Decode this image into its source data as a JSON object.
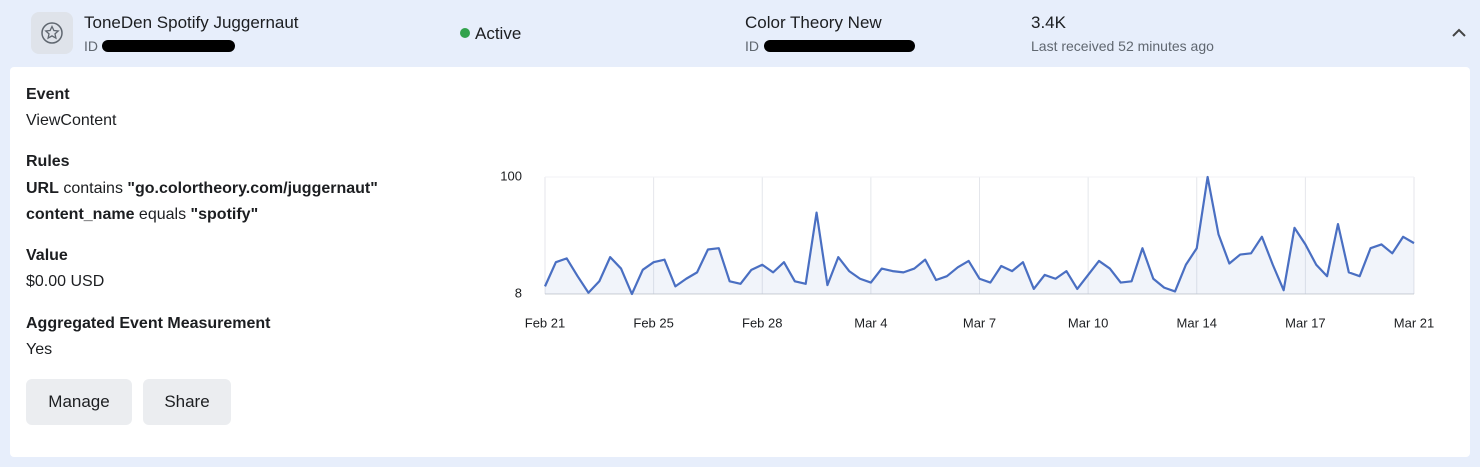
{
  "header": {
    "name": "ToneDen Spotify Juggernaut",
    "id_label": "ID",
    "status": "Active",
    "account": "Color Theory New",
    "account_id_label": "ID",
    "count": "3.4K",
    "last_received": "Last received 52 minutes ago"
  },
  "details": {
    "event_label": "Event",
    "event": "ViewContent",
    "rules_label": "Rules",
    "rules": [
      {
        "field": "URL",
        "operator": "contains",
        "value": "\"go.colortheory.com/juggernaut\""
      },
      {
        "field": "content_name",
        "operator": "equals",
        "value": "\"spotify\""
      }
    ],
    "value_label": "Value",
    "value": "$0.00 USD",
    "aem_label": "Aggregated Event Measurement",
    "aem": "Yes"
  },
  "buttons": [
    "Manage",
    "Share"
  ],
  "chart_data": {
    "type": "line",
    "x": [
      "Feb 21",
      null,
      null,
      null,
      null,
      null,
      null,
      null,
      null,
      null,
      "Feb 25",
      null,
      null,
      null,
      null,
      null,
      null,
      null,
      null,
      null,
      "Feb 28",
      null,
      null,
      null,
      null,
      null,
      null,
      null,
      null,
      null,
      "Mar 4",
      null,
      null,
      null,
      null,
      null,
      null,
      null,
      null,
      null,
      "Mar 7",
      null,
      null,
      null,
      null,
      null,
      null,
      null,
      null,
      null,
      "Mar 10",
      null,
      null,
      null,
      null,
      null,
      null,
      null,
      null,
      null,
      "Mar 14",
      null,
      null,
      null,
      null,
      null,
      null,
      null,
      null,
      null,
      "Mar 17",
      null,
      null,
      null,
      null,
      null,
      null,
      null,
      null,
      null,
      "Mar 21"
    ],
    "series": [
      {
        "color": "#4a6fc2",
        "values": [
          14,
          33,
          36,
          22,
          9,
          18,
          37,
          28,
          8,
          27,
          33,
          35,
          14,
          20,
          25,
          43,
          44,
          18,
          16,
          27,
          31,
          25,
          33,
          18,
          16,
          72,
          15,
          37,
          26,
          20,
          17,
          28,
          26,
          25,
          28,
          35,
          19,
          22,
          29,
          34,
          20,
          17,
          30,
          26,
          33,
          12,
          23,
          20,
          26,
          12,
          23,
          34,
          28,
          17,
          18,
          44,
          20,
          13,
          10,
          31,
          44,
          100,
          55,
          32,
          39,
          40,
          53,
          31,
          11,
          60,
          47,
          31,
          22,
          63,
          25,
          22,
          44,
          47,
          40,
          53,
          48
        ]
      }
    ],
    "ylim": [
      8,
      100
    ],
    "yticks": [
      8,
      100
    ],
    "grid": true
  }
}
